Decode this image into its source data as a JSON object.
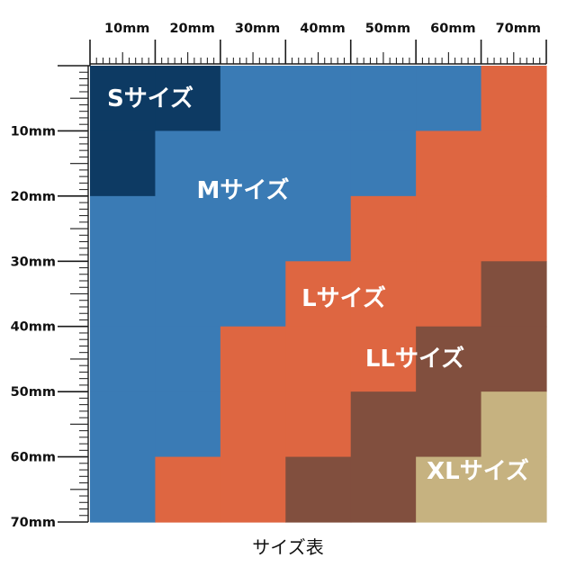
{
  "unit": "mm",
  "grid_size_mm": 70,
  "step_mm": 10,
  "caption": "サイズ表",
  "top_ruler_labels": [
    "10mm",
    "20mm",
    "30mm",
    "40mm",
    "50mm",
    "60mm",
    "70mm"
  ],
  "left_ruler_labels": [
    "10mm",
    "20mm",
    "30mm",
    "40mm",
    "50mm",
    "60mm",
    "70mm"
  ],
  "colors": {
    "S": "#0d3a63",
    "M": "#3a7bb5",
    "L": "#de6641",
    "LL": "#814f3e",
    "XL": "#c6b280",
    "ruler": "#1a1a1a",
    "label_text_light": "#ffffff"
  },
  "size_map": [
    [
      "S",
      "S",
      "M",
      "M",
      "M",
      "M",
      "L"
    ],
    [
      "S",
      "M",
      "M",
      "M",
      "M",
      "L",
      "L"
    ],
    [
      "M",
      "M",
      "M",
      "M",
      "L",
      "L",
      "L"
    ],
    [
      "M",
      "M",
      "M",
      "L",
      "L",
      "L",
      "LL"
    ],
    [
      "M",
      "M",
      "L",
      "L",
      "L",
      "LL",
      "LL"
    ],
    [
      "M",
      "M",
      "L",
      "L",
      "LL",
      "LL",
      "XL"
    ],
    [
      "M",
      "L",
      "L",
      "LL",
      "LL",
      "XL",
      "XL"
    ]
  ],
  "sizes": [
    {
      "key": "S",
      "label": "Sサイズ"
    },
    {
      "key": "M",
      "label": "Mサイズ"
    },
    {
      "key": "L",
      "label": "Lサイズ"
    },
    {
      "key": "LL",
      "label": "LLサイズ"
    },
    {
      "key": "XL",
      "label": "XLサイズ"
    }
  ]
}
